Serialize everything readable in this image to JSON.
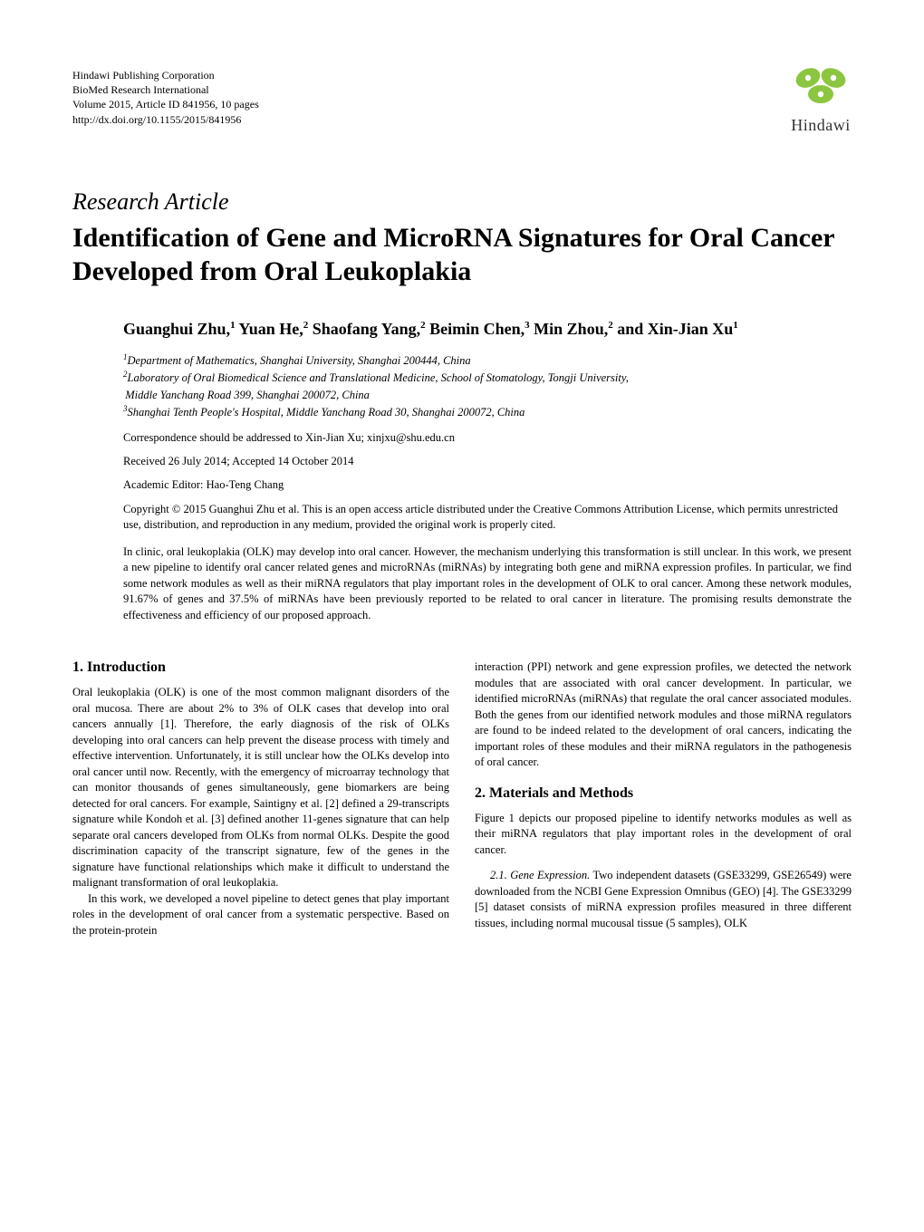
{
  "publisher": {
    "line1": "Hindawi Publishing Corporation",
    "line2": "BioMed Research International",
    "line3": "Volume 2015, Article ID 841956, 10 pages",
    "line4": "http://dx.doi.org/10.1155/2015/841956",
    "logo_text": "Hindawi"
  },
  "article_type": "Research Article",
  "title": "Identification of Gene and MicroRNA Signatures for Oral Cancer Developed from Oral Leukoplakia",
  "authors_html": "Guanghui Zhu,<sup>1</sup> Yuan He,<sup>2</sup> Shaofang Yang,<sup>2</sup> Beimin Chen,<sup>3</sup> Min Zhou,<sup>2</sup> and Xin-Jian Xu<sup>1</sup>",
  "affiliations": {
    "a1": "Department of Mathematics, Shanghai University, Shanghai 200444, China",
    "a2a": "Laboratory of Oral Biomedical Science and Translational Medicine, School of Stomatology, Tongji University,",
    "a2b": "Middle Yanchang Road 399, Shanghai 200072, China",
    "a3": "Shanghai Tenth People's Hospital, Middle Yanchang Road 30, Shanghai 200072, China"
  },
  "correspondence": "Correspondence should be addressed to Xin-Jian Xu; xinjxu@shu.edu.cn",
  "dates": "Received 26 July 2014; Accepted 14 October 2014",
  "editor": "Academic Editor: Hao-Teng Chang",
  "copyright": "Copyright © 2015 Guanghui Zhu et al. This is an open access article distributed under the Creative Commons Attribution License, which permits unrestricted use, distribution, and reproduction in any medium, provided the original work is properly cited.",
  "abstract": "In clinic, oral leukoplakia (OLK) may develop into oral cancer. However, the mechanism underlying this transformation is still unclear. In this work, we present a new pipeline to identify oral cancer related genes and microRNAs (miRNAs) by integrating both gene and miRNA expression profiles. In particular, we find some network modules as well as their miRNA regulators that play important roles in the development of OLK to oral cancer. Among these network modules, 91.67% of genes and 37.5% of miRNAs have been previously reported to be related to oral cancer in literature. The promising results demonstrate the effectiveness and efficiency of our proposed approach.",
  "sections": {
    "intro_heading": "1. Introduction",
    "intro_p1": "Oral leukoplakia (OLK) is one of the most common malignant disorders of the oral mucosa. There are about 2% to 3% of OLK cases that develop into oral cancers annually [1]. Therefore, the early diagnosis of the risk of OLKs developing into oral cancers can help prevent the disease process with timely and effective intervention. Unfortunately, it is still unclear how the OLKs develop into oral cancer until now. Recently, with the emergency of microarray technology that can monitor thousands of genes simultaneously, gene biomarkers are being detected for oral cancers. For example, Saintigny et al. [2] defined a 29-transcripts signature while Kondoh et al. [3] defined another 11-genes signature that can help separate oral cancers developed from OLKs from normal OLKs. Despite the good discrimination capacity of the transcript signature, few of the genes in the signature have functional relationships which make it difficult to understand the malignant transformation of oral leukoplakia.",
    "intro_p2": "In this work, we developed a novel pipeline to detect genes that play important roles in the development of oral cancer from a systematic perspective. Based on the protein-protein",
    "col2_p1": "interaction (PPI) network and gene expression profiles, we detected the network modules that are associated with oral cancer development. In particular, we identified microRNAs (miRNAs) that regulate the oral cancer associated modules. Both the genes from our identified network modules and those miRNA regulators are found to be indeed related to the development of oral cancers, indicating the important roles of these modules and their miRNA regulators in the pathogenesis of oral cancer.",
    "methods_heading": "2. Materials and Methods",
    "methods_p1": "Figure 1 depicts our proposed pipeline to identify networks modules as well as their miRNA regulators that play important roles in the development of oral cancer.",
    "methods_sub_head": "2.1. Gene Expression.",
    "methods_p2": " Two independent datasets (GSE33299, GSE26549) were downloaded from the NCBI Gene Expression Omnibus (GEO) [4]. The GSE33299 [5] dataset consists of miRNA expression profiles measured in three different tissues, including normal mucousal tissue (5 samples), OLK"
  },
  "colors": {
    "logo_green": "#8cc640",
    "logo_text": "#333333",
    "text": "#000000",
    "background": "#ffffff"
  }
}
